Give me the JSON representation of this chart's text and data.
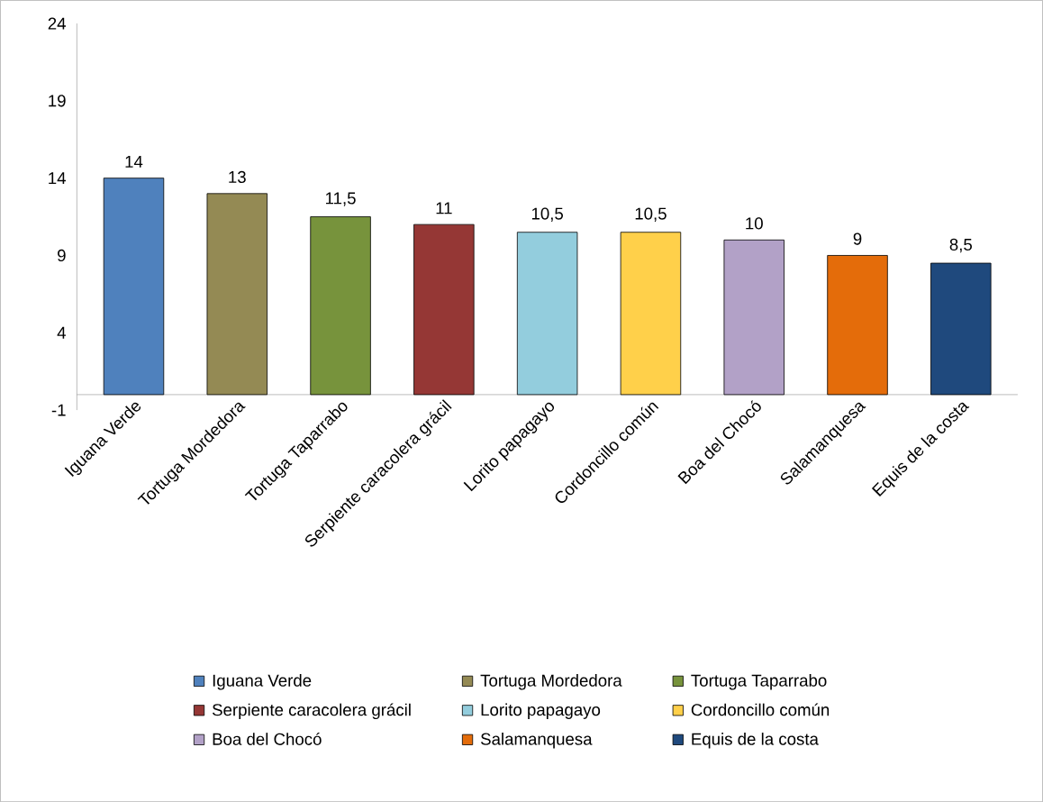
{
  "chart_data": {
    "type": "bar",
    "categories": [
      "Iguana Verde",
      "Tortuga Mordedora",
      "Tortuga Taparrabo",
      "Serpiente caracolera grácil",
      "Lorito papagayo",
      "Cordoncillo común",
      "Boa del Chocó",
      "Salamanquesa",
      "Equis de la costa"
    ],
    "series": [
      {
        "name": "Iguana Verde",
        "color": "#4f81bd",
        "values": [
          14,
          null,
          null,
          null,
          null,
          null,
          null,
          null,
          null
        ],
        "value_labels": [
          "14",
          null,
          null,
          null,
          null,
          null,
          null,
          null,
          null
        ]
      },
      {
        "name": "Tortuga Mordedora",
        "color": "#948a54",
        "values": [
          null,
          13,
          null,
          null,
          null,
          null,
          null,
          null,
          null
        ],
        "value_labels": [
          null,
          "13",
          null,
          null,
          null,
          null,
          null,
          null,
          null
        ]
      },
      {
        "name": "Tortuga Taparrabo",
        "color": "#77933c",
        "values": [
          null,
          null,
          11.5,
          null,
          null,
          null,
          null,
          null,
          null
        ],
        "value_labels": [
          null,
          null,
          "11,5",
          null,
          null,
          null,
          null,
          null,
          null
        ]
      },
      {
        "name": "Serpiente caracolera grácil",
        "color": "#953735",
        "values": [
          null,
          null,
          null,
          11,
          null,
          null,
          null,
          null,
          null
        ],
        "value_labels": [
          null,
          null,
          null,
          "11",
          null,
          null,
          null,
          null,
          null
        ]
      },
      {
        "name": "Lorito papagayo",
        "color": "#93cddd",
        "values": [
          null,
          null,
          null,
          null,
          10.5,
          null,
          null,
          null,
          null
        ],
        "value_labels": [
          null,
          null,
          null,
          null,
          "10,5",
          null,
          null,
          null,
          null
        ]
      },
      {
        "name": "Cordoncillo común",
        "color": "#ffd04a",
        "values": [
          null,
          null,
          null,
          null,
          null,
          10.5,
          null,
          null,
          null
        ],
        "value_labels": [
          null,
          null,
          null,
          null,
          null,
          "10,5",
          null,
          null,
          null
        ]
      },
      {
        "name": "Boa del Chocó",
        "color": "#b2a1c7",
        "values": [
          null,
          null,
          null,
          null,
          null,
          null,
          10,
          null,
          null
        ],
        "value_labels": [
          null,
          null,
          null,
          null,
          null,
          null,
          "10",
          null,
          null
        ]
      },
      {
        "name": "Salamanquesa",
        "color": "#e46c0a",
        "values": [
          null,
          null,
          null,
          null,
          null,
          null,
          null,
          9,
          null
        ],
        "value_labels": [
          null,
          null,
          null,
          null,
          null,
          null,
          null,
          "9",
          null
        ]
      },
      {
        "name": "Equis de la costa",
        "color": "#1f497d",
        "values": [
          null,
          null,
          null,
          null,
          null,
          null,
          null,
          null,
          8.5
        ],
        "value_labels": [
          null,
          null,
          null,
          null,
          null,
          null,
          null,
          null,
          "8,5"
        ]
      }
    ],
    "ylim": [
      -1,
      24
    ],
    "yticks": [
      -1,
      4,
      9,
      14,
      19,
      24
    ],
    "grid": false,
    "legend": "bottom"
  }
}
